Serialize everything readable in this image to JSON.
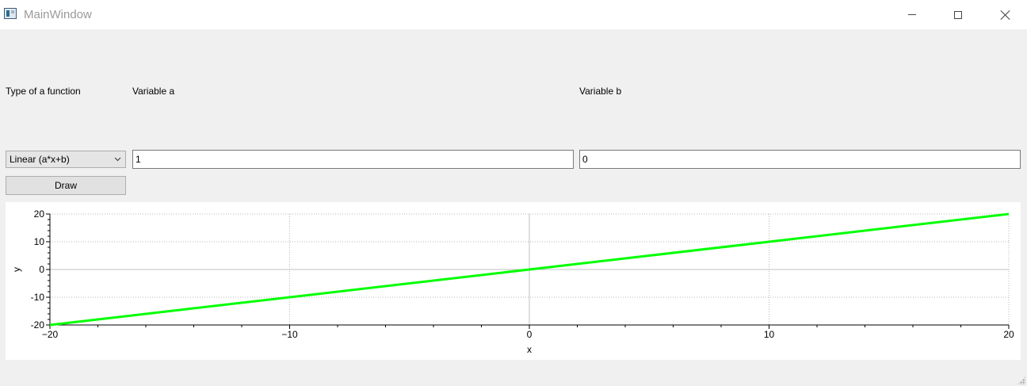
{
  "window": {
    "title": "MainWindow",
    "minimize_icon": "minimize-icon",
    "maximize_icon": "maximize-icon",
    "close_icon": "close-icon"
  },
  "form": {
    "function_type_label": "Type of a function",
    "variable_a_label": "Variable a",
    "variable_b_label": "Variable b",
    "function_type_value": "Linear (a*x+b)",
    "variable_a_value": "1",
    "variable_b_value": "0",
    "draw_label": "Draw"
  },
  "chart_data": {
    "type": "line",
    "title": "",
    "xlabel": "x",
    "ylabel": "y",
    "xlim": [
      -20,
      20
    ],
    "ylim": [
      -20,
      20
    ],
    "xticks": [
      -20,
      -10,
      0,
      10,
      20
    ],
    "yticks": [
      -20,
      -10,
      0,
      10,
      20
    ],
    "grid": true,
    "series": [
      {
        "x": [
          -20,
          20
        ],
        "y": [
          -20,
          20
        ],
        "color": "#00ff00"
      }
    ]
  }
}
